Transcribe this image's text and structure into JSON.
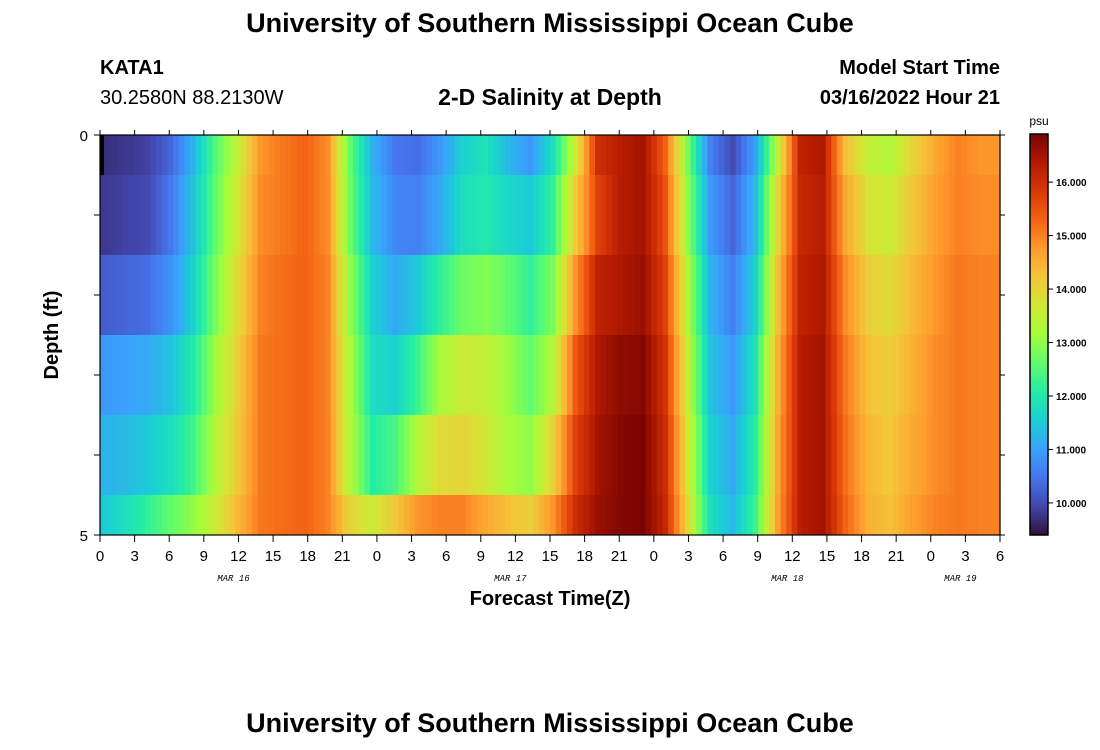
{
  "header": {
    "title": "University of Southern Mississippi Ocean Cube",
    "station": "KATA1",
    "coordinates": "30.2580N  88.2130W",
    "chart_title": "2-D Salinity at Depth",
    "model_start_label": "Model Start Time",
    "model_start_value": "03/16/2022 Hour 21"
  },
  "footer": {
    "title": "University of Southern Mississippi Ocean Cube"
  },
  "colors": {
    "colormap": [
      "#30123b",
      "#4145ab",
      "#4675ed",
      "#39a2fc",
      "#1bcfd4",
      "#24eca6",
      "#61fc6c",
      "#a4fc3b",
      "#d1e834",
      "#f3c63a",
      "#fe9b2d",
      "#f36315",
      "#d93806",
      "#b11901",
      "#7a0402"
    ]
  },
  "chart_data": {
    "type": "heatmap",
    "title": "2-D Salinity at Depth",
    "xlabel": "Forecast Time(Z)",
    "ylabel": "Depth (ft)",
    "x_tick_labels": [
      "0",
      "3",
      "6",
      "9",
      "12",
      "15",
      "18",
      "21",
      "0",
      "3",
      "6",
      "9",
      "12",
      "15",
      "18",
      "21",
      "0",
      "3",
      "6",
      "9",
      "12",
      "15",
      "18",
      "21",
      "0",
      "3",
      "6"
    ],
    "date_labels": [
      "MAR 16",
      "MAR 17",
      "MAR 18",
      "MAR 19"
    ],
    "y_tick_labels": [
      "0",
      "5"
    ],
    "ylim": [
      0,
      5
    ],
    "colorbar": {
      "unit": "psu",
      "range": [
        9.4,
        16.9
      ],
      "tick_labels": [
        "10.000",
        "11.000",
        "12.000",
        "13.000",
        "14.000",
        "15.000",
        "16.000"
      ],
      "tick_values": [
        10,
        11,
        12,
        13,
        14,
        15,
        16
      ]
    },
    "x_hours": [
      0,
      2,
      4,
      6,
      8,
      10,
      12,
      14,
      16,
      18,
      20,
      22,
      24,
      26,
      28,
      30,
      32,
      34,
      36,
      38,
      40,
      42,
      44,
      46,
      48,
      50,
      52,
      54,
      56,
      58,
      60,
      62,
      64,
      66,
      68,
      70,
      72,
      74,
      76,
      78
    ],
    "depth_layers": [
      0.25,
      1.0,
      2.0,
      3.0,
      4.0,
      4.75
    ],
    "salinity": [
      [
        9.7,
        9.8,
        9.9,
        10.3,
        11.2,
        12.5,
        13.5,
        14.8,
        15.1,
        15.3,
        14.9,
        12.6,
        11.2,
        10.5,
        10.4,
        10.9,
        11.6,
        11.9,
        11.3,
        10.9,
        11.8,
        13.6,
        16.0,
        16.3,
        16.5,
        15.3,
        12.8,
        10.6,
        10.0,
        11.0,
        13.5,
        16.2,
        16.4,
        14.3,
        13.5,
        13.3,
        14.0,
        14.6,
        15.0,
        14.8
      ],
      [
        9.8,
        9.9,
        10.0,
        10.5,
        11.4,
        12.6,
        13.7,
        14.9,
        15.1,
        15.3,
        14.9,
        12.7,
        11.3,
        10.7,
        10.6,
        11.1,
        11.8,
        12.0,
        11.7,
        11.5,
        12.2,
        14.1,
        15.7,
        16.3,
        16.5,
        15.5,
        13.0,
        10.9,
        10.3,
        11.3,
        14.0,
        16.1,
        16.3,
        14.6,
        13.8,
        13.6,
        14.2,
        14.7,
        15.0,
        14.9
      ],
      [
        10.2,
        10.3,
        10.4,
        10.8,
        11.6,
        12.8,
        13.9,
        15.0,
        15.2,
        15.3,
        15.0,
        13.0,
        11.6,
        11.1,
        11.5,
        12.2,
        12.7,
        12.9,
        12.6,
        12.2,
        12.8,
        14.8,
        16.2,
        16.4,
        16.6,
        15.7,
        13.3,
        11.2,
        10.6,
        11.6,
        14.3,
        16.2,
        16.4,
        14.9,
        14.1,
        13.9,
        14.4,
        14.8,
        15.1,
        15.0
      ],
      [
        10.9,
        11.0,
        11.1,
        11.4,
        12.0,
        13.1,
        14.1,
        15.1,
        15.2,
        15.3,
        15.0,
        13.2,
        11.8,
        11.6,
        12.3,
        13.2,
        13.6,
        13.5,
        13.1,
        12.6,
        13.3,
        15.4,
        16.4,
        16.7,
        16.8,
        15.9,
        13.5,
        11.4,
        10.9,
        11.9,
        14.5,
        16.3,
        16.5,
        15.1,
        14.3,
        14.1,
        14.5,
        14.9,
        15.1,
        15.0
      ],
      [
        11.2,
        11.3,
        11.5,
        11.8,
        12.3,
        13.3,
        14.2,
        15.1,
        15.2,
        15.3,
        15.0,
        13.3,
        12.1,
        12.4,
        13.3,
        13.9,
        14.0,
        13.7,
        13.2,
        13.0,
        14.0,
        15.7,
        16.5,
        16.8,
        16.9,
        16.0,
        13.7,
        11.6,
        11.1,
        12.1,
        14.6,
        16.3,
        16.5,
        15.2,
        14.4,
        14.2,
        14.6,
        14.9,
        15.1,
        15.0
      ],
      [
        11.5,
        11.8,
        12.2,
        12.6,
        13.0,
        13.6,
        14.4,
        15.1,
        15.2,
        15.3,
        15.0,
        14.0,
        13.6,
        14.2,
        14.8,
        15.0,
        15.0,
        14.6,
        14.3,
        14.1,
        14.8,
        16.0,
        16.6,
        16.8,
        16.9,
        16.1,
        13.9,
        11.8,
        11.3,
        12.3,
        14.7,
        16.3,
        16.5,
        15.3,
        14.5,
        14.3,
        14.7,
        15.0,
        15.1,
        15.0
      ]
    ]
  }
}
